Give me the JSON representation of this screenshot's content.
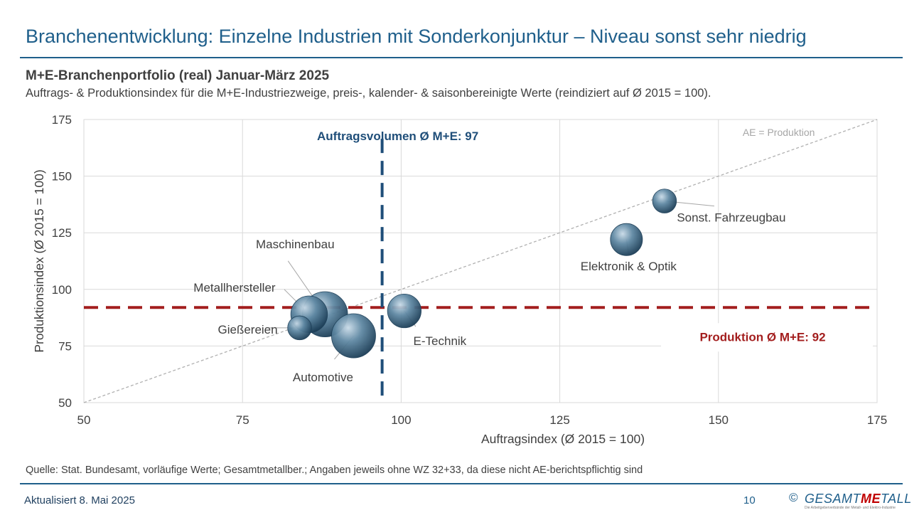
{
  "page": {
    "title": "Branchenentwicklung: Einzelne Industrien mit Sonderkonjunktur – Niveau sonst sehr niedrig",
    "source": "Quelle: Stat. Bundesamt, vorläufige Werte; Gesamtmetallber.; Angaben jeweils ohne WZ 32+33, da diese nicht AE-berichtspflichtig sind",
    "updated": "Aktualisiert 8. Mai 2025",
    "page_number": "10",
    "logo": {
      "copyright": "©",
      "text_pre": "GESAMT",
      "text_me": "ME",
      "text_post": "TALL",
      "tagline": "Die Arbeitgeberverbände der Metall- und Elektro-Industrie"
    }
  },
  "colors": {
    "title": "#1f5f8b",
    "order_line": "#1f4e79",
    "production_line": "#a31e1e",
    "bubble": "#5f88a3",
    "text": "#404040"
  },
  "chart_data": {
    "type": "scatter",
    "title": "M+E-Branchenportfolio (real) Januar-März 2025",
    "subtitle": "Auftrags- & Produktionsindex für die M+E-Industriezweige, preis-, kalender- & saisonbereinigte Werte (reindiziert auf Ø 2015 = 100).",
    "xlabel": "Auftragsindex (Ø 2015 = 100)",
    "ylabel": "Produktionsindex (Ø 2015 = 100)",
    "xlim": [
      50,
      175
    ],
    "ylim": [
      50,
      175
    ],
    "xticks": [
      50,
      75,
      100,
      125,
      150,
      175
    ],
    "yticks": [
      50,
      75,
      100,
      125,
      150,
      175
    ],
    "grid": true,
    "points": [
      {
        "name": "Maschinenbau",
        "x": 88,
        "y": 89,
        "size": 3.4
      },
      {
        "name": "Metallhersteller",
        "x": 85.5,
        "y": 89,
        "size": 2.0
      },
      {
        "name": "Gießereien",
        "x": 84,
        "y": 83,
        "size": 0.6
      },
      {
        "name": "Automotive",
        "x": 92.5,
        "y": 79.5,
        "size": 3.2
      },
      {
        "name": "E-Technik",
        "x": 100.5,
        "y": 90.5,
        "size": 1.6
      },
      {
        "name": "Elektronik & Optik",
        "x": 135.5,
        "y": 122,
        "size": 1.4
      },
      {
        "name": "Sonst. Fahrzeugbau",
        "x": 141.5,
        "y": 139,
        "size": 0.6
      }
    ],
    "reference_lines": {
      "orders_avg": {
        "label": "Auftragsvolumen Ø M+E: 97",
        "value": 97
      },
      "production_avg": {
        "label": "Produktion Ø M+E: 92",
        "value": 92
      },
      "diagonal": {
        "label": "AE = Produktion"
      }
    }
  }
}
